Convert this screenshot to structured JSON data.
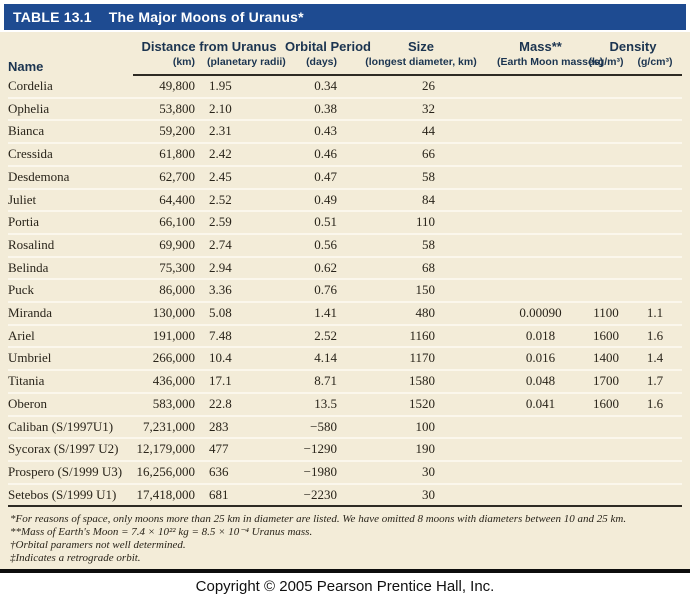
{
  "title": {
    "label": "TABLE 13.1",
    "text": "The Major Moons of Uranus*"
  },
  "colors": {
    "title_bar_blue": "#1e4b91",
    "table_cream": "#f3ecd8",
    "header_text_navy": "#1b3450",
    "body_text": "#29241a",
    "rule_dark": "#2e2b24"
  },
  "table": {
    "columns": {
      "name": "Name",
      "distance_group": "Distance from Uranus",
      "distance_km_sub": "(km)",
      "distance_radii_sub": "(planetary radii)",
      "orbital_period": "Orbital Period",
      "orbital_period_sub": "(days)",
      "size": "Size",
      "size_sub": "(longest diameter, km)",
      "mass": "Mass**",
      "mass_sub": "(Earth Moon masses)",
      "density_group": "Density",
      "density_kgm3_sub": "(kg/m³)",
      "density_gcm3_sub": "(g/cm³)"
    },
    "rows": [
      {
        "name": "Cordelia",
        "distance_km": "49,800",
        "planetary_radii": "1.95",
        "orbital_period_days": "0.34",
        "size_km": "26",
        "mass": "",
        "density_kgm3": "",
        "density_gcm3": ""
      },
      {
        "name": "Ophelia",
        "distance_km": "53,800",
        "planetary_radii": "2.10",
        "orbital_period_days": "0.38",
        "size_km": "32",
        "mass": "",
        "density_kgm3": "",
        "density_gcm3": ""
      },
      {
        "name": "Bianca",
        "distance_km": "59,200",
        "planetary_radii": "2.31",
        "orbital_period_days": "0.43",
        "size_km": "44",
        "mass": "",
        "density_kgm3": "",
        "density_gcm3": ""
      },
      {
        "name": "Cressida",
        "distance_km": "61,800",
        "planetary_radii": "2.42",
        "orbital_period_days": "0.46",
        "size_km": "66",
        "mass": "",
        "density_kgm3": "",
        "density_gcm3": ""
      },
      {
        "name": "Desdemona",
        "distance_km": "62,700",
        "planetary_radii": "2.45",
        "orbital_period_days": "0.47",
        "size_km": "58",
        "mass": "",
        "density_kgm3": "",
        "density_gcm3": ""
      },
      {
        "name": "Juliet",
        "distance_km": "64,400",
        "planetary_radii": "2.52",
        "orbital_period_days": "0.49",
        "size_km": "84",
        "mass": "",
        "density_kgm3": "",
        "density_gcm3": ""
      },
      {
        "name": "Portia",
        "distance_km": "66,100",
        "planetary_radii": "2.59",
        "orbital_period_days": "0.51",
        "size_km": "110",
        "mass": "",
        "density_kgm3": "",
        "density_gcm3": ""
      },
      {
        "name": "Rosalind",
        "distance_km": "69,900",
        "planetary_radii": "2.74",
        "orbital_period_days": "0.56",
        "size_km": "58",
        "mass": "",
        "density_kgm3": "",
        "density_gcm3": ""
      },
      {
        "name": "Belinda",
        "distance_km": "75,300",
        "planetary_radii": "2.94",
        "orbital_period_days": "0.62",
        "size_km": "68",
        "mass": "",
        "density_kgm3": "",
        "density_gcm3": ""
      },
      {
        "name": "Puck",
        "distance_km": "86,000",
        "planetary_radii": "3.36",
        "orbital_period_days": "0.76",
        "size_km": "150",
        "mass": "",
        "density_kgm3": "",
        "density_gcm3": ""
      },
      {
        "name": "Miranda",
        "distance_km": "130,000",
        "planetary_radii": "5.08",
        "orbital_period_days": "1.41",
        "size_km": "480",
        "mass": "0.00090",
        "density_kgm3": "1100",
        "density_gcm3": "1.1"
      },
      {
        "name": "Ariel",
        "distance_km": "191,000",
        "planetary_radii": "7.48",
        "orbital_period_days": "2.52",
        "size_km": "1160",
        "mass": "0.018",
        "density_kgm3": "1600",
        "density_gcm3": "1.6"
      },
      {
        "name": "Umbriel",
        "distance_km": "266,000",
        "planetary_radii": "10.4",
        "orbital_period_days": "4.14",
        "size_km": "1170",
        "mass": "0.016",
        "density_kgm3": "1400",
        "density_gcm3": "1.4"
      },
      {
        "name": "Titania",
        "distance_km": "436,000",
        "planetary_radii": "17.1",
        "orbital_period_days": "8.71",
        "size_km": "1580",
        "mass": "0.048",
        "density_kgm3": "1700",
        "density_gcm3": "1.7"
      },
      {
        "name": "Oberon",
        "distance_km": "583,000",
        "planetary_radii": "22.8",
        "orbital_period_days": "13.5",
        "size_km": "1520",
        "mass": "0.041",
        "density_kgm3": "1600",
        "density_gcm3": "1.6"
      },
      {
        "name": "Caliban (S/1997U1)",
        "distance_km": "7,231,000",
        "planetary_radii": "283",
        "orbital_period_days": "−580",
        "size_km": "100",
        "mass": "",
        "density_kgm3": "",
        "density_gcm3": ""
      },
      {
        "name": "Sycorax (S/1997 U2)",
        "distance_km": "12,179,000",
        "planetary_radii": "477",
        "orbital_period_days": "−1290",
        "size_km": "190",
        "mass": "",
        "density_kgm3": "",
        "density_gcm3": ""
      },
      {
        "name": "Prospero (S/1999 U3)",
        "distance_km": "16,256,000",
        "planetary_radii": "636",
        "orbital_period_days": "−1980",
        "size_km": "30",
        "mass": "",
        "density_kgm3": "",
        "density_gcm3": ""
      },
      {
        "name": "Setebos (S/1999 U1)",
        "distance_km": "17,418,000",
        "planetary_radii": "681",
        "orbital_period_days": "−2230",
        "size_km": "30",
        "mass": "",
        "density_kgm3": "",
        "density_gcm3": ""
      }
    ]
  },
  "footnotes": [
    "*For reasons of space, only moons more than 25 km in diameter are listed. We have omitted 8 moons with diameters between 10 and 25 km.",
    "**Mass of Earth's Moon = 7.4 × 10²² kg = 8.5 × 10⁻⁴ Uranus mass.",
    "†Orbital paramers not well determined.",
    "‡Indicates a retrograde orbit."
  ],
  "copyright": "Copyright © 2005 Pearson Prentice Hall, Inc."
}
